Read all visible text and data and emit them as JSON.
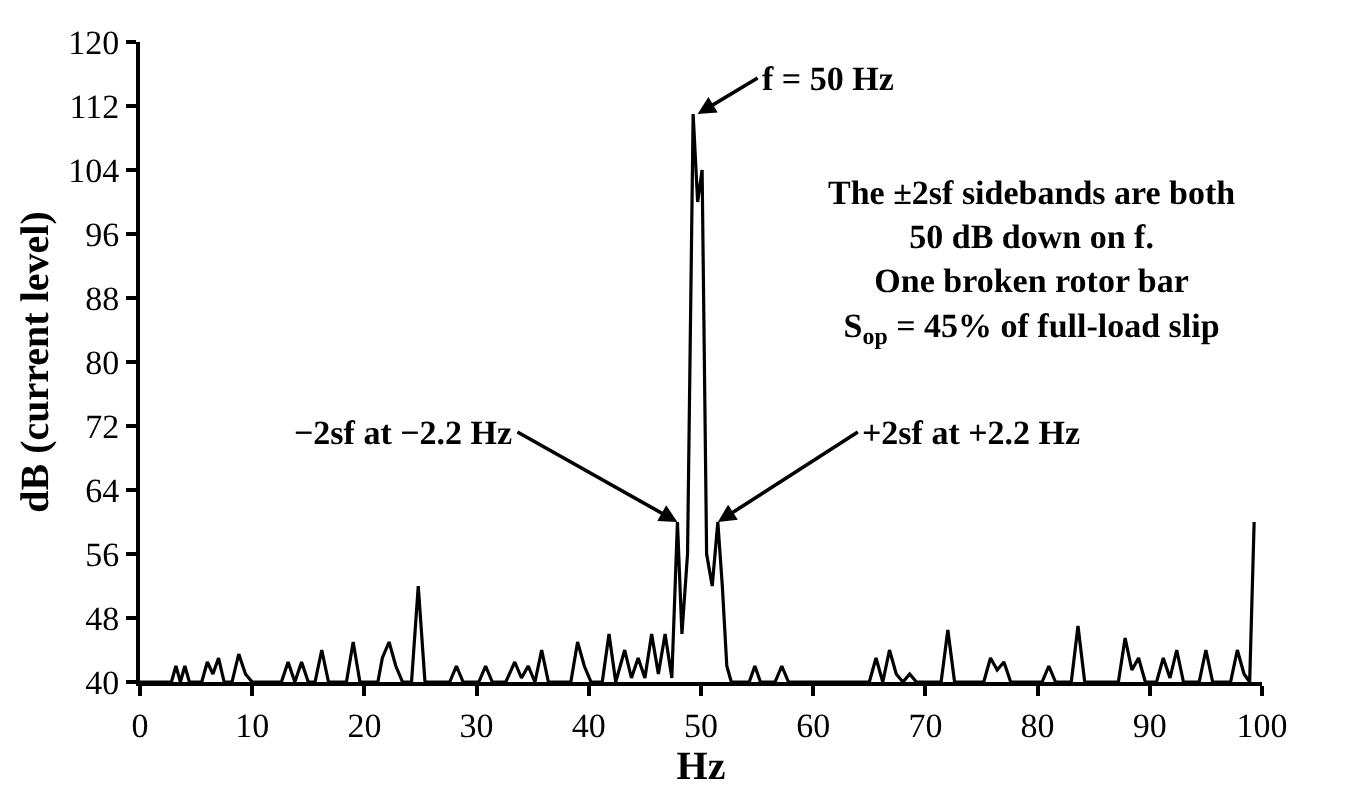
{
  "chart_data": {
    "type": "line",
    "xlabel": "Hz",
    "ylabel": "dB (current level)",
    "x": [
      0,
      2.8,
      3.2,
      3.6,
      4.0,
      4.4,
      5.5,
      6.0,
      6.5,
      7.0,
      7.5,
      8.2,
      8.8,
      9.4,
      10.0,
      12.6,
      13.2,
      13.8,
      14.4,
      15.0,
      15.6,
      16.2,
      16.8,
      18.4,
      19.0,
      19.6,
      21.2,
      21.6,
      22.2,
      22.8,
      23.4,
      24.2,
      24.8,
      25.4,
      27.6,
      28.2,
      28.8,
      30.2,
      30.8,
      31.4,
      32.6,
      33.4,
      34.0,
      34.6,
      35.2,
      35.8,
      36.4,
      38.4,
      39.0,
      39.6,
      40.2,
      41.2,
      41.8,
      42.4,
      43.2,
      43.8,
      44.4,
      45.0,
      45.6,
      46.2,
      46.8,
      47.4,
      47.9,
      48.3,
      48.8,
      49.3,
      49.7,
      50.1,
      50.5,
      51.0,
      51.5,
      51.9,
      52.3,
      52.7,
      54.3,
      54.8,
      55.3,
      56.6,
      57.2,
      57.8,
      58.4,
      65.0,
      65.6,
      66.2,
      66.8,
      67.4,
      68.0,
      68.6,
      69.2,
      69.8,
      71.4,
      72.0,
      72.6,
      75.2,
      75.8,
      76.4,
      77.0,
      77.6,
      80.4,
      81.0,
      81.6,
      83.0,
      83.6,
      84.2,
      87.2,
      87.8,
      88.4,
      89.0,
      89.6,
      90.6,
      91.2,
      91.8,
      92.4,
      93.0,
      94.4,
      95.0,
      95.6,
      97.2,
      97.8,
      98.4,
      98.9,
      99.3
    ],
    "series": [
      {
        "color": "#000000",
        "values": [
          40,
          40,
          42,
          40,
          42,
          40,
          40,
          42.5,
          41,
          43,
          40,
          40,
          43.5,
          41,
          40,
          40,
          42.5,
          40,
          42.5,
          40,
          40,
          44,
          40,
          40,
          45,
          40,
          40,
          43,
          45,
          42,
          40,
          40,
          52,
          40,
          40,
          42,
          40,
          40,
          42,
          40,
          40,
          42.5,
          40.5,
          42,
          40,
          44,
          40,
          40,
          45,
          42,
          40,
          40,
          46,
          40,
          44,
          40.5,
          43,
          40.5,
          46,
          41,
          46,
          40.5,
          60,
          46,
          56,
          111,
          100,
          104,
          56,
          52,
          60,
          52,
          42,
          40,
          40,
          42,
          40,
          40,
          42,
          40,
          40,
          40,
          43,
          40,
          44,
          41,
          40,
          41,
          40,
          40,
          40,
          46.5,
          40,
          40,
          43,
          41.5,
          42.5,
          40,
          40,
          42,
          40,
          40,
          47,
          40,
          40,
          45.5,
          41.5,
          43,
          40,
          40,
          43,
          40.5,
          44,
          40,
          40,
          44,
          40,
          40,
          44,
          41,
          40,
          60
        ]
      }
    ],
    "xlim": [
      0,
      100
    ],
    "xticks": [
      0,
      10,
      20,
      30,
      40,
      50,
      60,
      70,
      80,
      90,
      100
    ],
    "ylim": [
      40,
      120
    ],
    "yticks": [
      40,
      48,
      56,
      64,
      72,
      80,
      88,
      96,
      104,
      112,
      120
    ],
    "marker": "none",
    "line_style": "solid",
    "annotations": [
      {
        "text": "f = 50 Hz",
        "x": 49.7,
        "y": 111
      },
      {
        "text": "−2sf at −2.2 Hz",
        "x": 47.9,
        "y": 60
      },
      {
        "text": "+2sf at +2.2 Hz",
        "x": 51.5,
        "y": 60
      },
      "The ±2sf sidebands are both\n50 dB down on f.\nOne broken rotor bar\nS$_{op}$ = 45% of full-load slip"
    ]
  }
}
